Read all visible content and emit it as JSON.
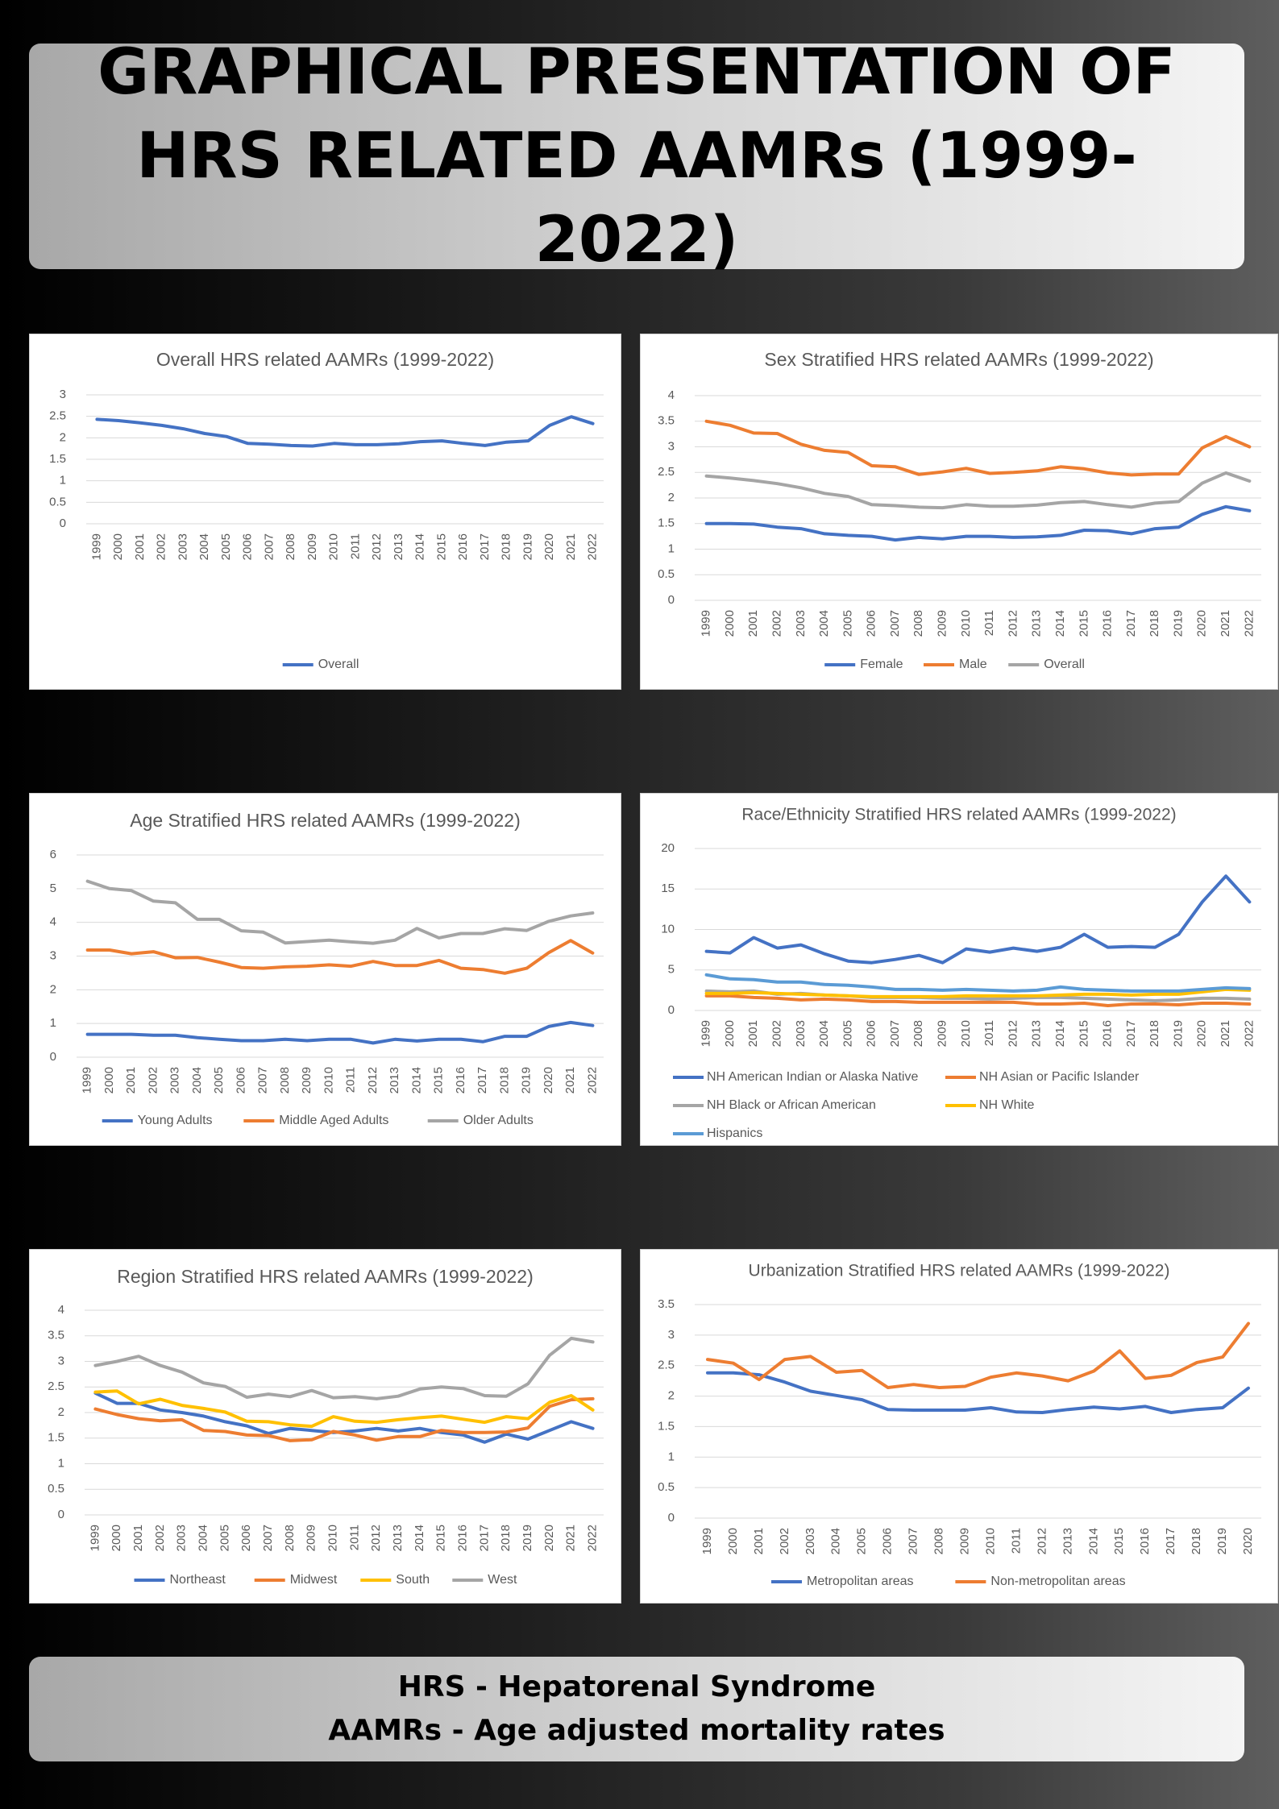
{
  "header": {
    "title": "GRAPHICAL PRESENTATION OF HRS RELATED AAMRs (1999-2022)"
  },
  "footer": {
    "line1": "HRS - Hepatorenal Syndrome",
    "line2": "AAMRs - Age adjusted mortality rates"
  },
  "chart_data": [
    {
      "type": "line",
      "title": "Overall HRS related AAMRs (1999-2022)",
      "xlabel": "",
      "ylabel": "",
      "ylim": [
        0,
        3
      ],
      "yticks": [
        0,
        0.5,
        1,
        1.5,
        2,
        2.5,
        3
      ],
      "grid": true,
      "legend": "bottom",
      "x": [
        "1999",
        "2000",
        "2001",
        "2002",
        "2003",
        "2004",
        "2005",
        "2006",
        "2007",
        "2008",
        "2009",
        "2010",
        "2011",
        "2012",
        "2013",
        "2014",
        "2015",
        "2016",
        "2017",
        "2018",
        "2019",
        "2020",
        "2021",
        "2022"
      ],
      "series": [
        {
          "name": "Overall",
          "color": "#4472C4",
          "values": [
            2.43,
            2.4,
            2.35,
            2.29,
            2.21,
            2.1,
            2.03,
            1.87,
            1.85,
            1.82,
            1.81,
            1.87,
            1.84,
            1.84,
            1.86,
            1.91,
            1.93,
            1.87,
            1.82,
            1.9,
            1.93,
            2.29,
            2.49,
            2.33
          ]
        }
      ]
    },
    {
      "type": "line",
      "title": "Sex Stratified HRS related AAMRs (1999-2022)",
      "xlabel": "",
      "ylabel": "",
      "ylim": [
        0,
        4
      ],
      "yticks": [
        0,
        0.5,
        1,
        1.5,
        2,
        2.5,
        3,
        3.5,
        4
      ],
      "grid": true,
      "legend": "bottom",
      "x": [
        "1999",
        "2000",
        "2001",
        "2002",
        "2003",
        "2004",
        "2005",
        "2006",
        "2007",
        "2008",
        "2009",
        "2010",
        "2011",
        "2012",
        "2013",
        "2014",
        "2015",
        "2016",
        "2017",
        "2018",
        "2019",
        "2020",
        "2021",
        "2022"
      ],
      "series": [
        {
          "name": "Female",
          "color": "#4472C4",
          "values": [
            1.5,
            1.5,
            1.49,
            1.43,
            1.4,
            1.3,
            1.27,
            1.25,
            1.18,
            1.23,
            1.2,
            1.25,
            1.25,
            1.23,
            1.24,
            1.27,
            1.37,
            1.36,
            1.3,
            1.4,
            1.43,
            1.68,
            1.83,
            1.75
          ]
        },
        {
          "name": "Male",
          "color": "#ED7D31",
          "values": [
            3.5,
            3.42,
            3.27,
            3.26,
            3.05,
            2.93,
            2.89,
            2.63,
            2.61,
            2.46,
            2.51,
            2.58,
            2.48,
            2.5,
            2.53,
            2.61,
            2.57,
            2.49,
            2.45,
            2.47,
            2.47,
            2.98,
            3.2,
            3.0
          ]
        },
        {
          "name": "Overall",
          "color": "#A5A5A5",
          "values": [
            2.43,
            2.39,
            2.34,
            2.28,
            2.2,
            2.09,
            2.03,
            1.87,
            1.85,
            1.82,
            1.81,
            1.87,
            1.84,
            1.84,
            1.86,
            1.91,
            1.93,
            1.87,
            1.82,
            1.9,
            1.93,
            2.29,
            2.49,
            2.33
          ]
        }
      ]
    },
    {
      "type": "line",
      "title": "Age Stratified HRS related AAMRs (1999-2022)",
      "xlabel": "",
      "ylabel": "",
      "ylim": [
        0,
        6
      ],
      "yticks": [
        0,
        1,
        2,
        3,
        4,
        5,
        6
      ],
      "grid": true,
      "legend": "bottom",
      "x": [
        "1999",
        "2000",
        "2001",
        "2002",
        "2003",
        "2004",
        "2005",
        "2006",
        "2007",
        "2008",
        "2009",
        "2010",
        "2011",
        "2012",
        "2013",
        "2014",
        "2015",
        "2016",
        "2017",
        "2018",
        "2019",
        "2020",
        "2021",
        "2022"
      ],
      "series": [
        {
          "name": "Young Adults",
          "color": "#4472C4",
          "values": [
            0.68,
            0.68,
            0.68,
            0.65,
            0.65,
            0.58,
            0.53,
            0.49,
            0.49,
            0.53,
            0.49,
            0.53,
            0.53,
            0.42,
            0.53,
            0.48,
            0.53,
            0.53,
            0.46,
            0.62,
            0.62,
            0.91,
            1.03,
            0.94
          ]
        },
        {
          "name": "Middle Aged Adults",
          "color": "#ED7D31",
          "values": [
            3.18,
            3.18,
            3.07,
            3.13,
            2.95,
            2.96,
            2.82,
            2.66,
            2.64,
            2.68,
            2.7,
            2.74,
            2.7,
            2.84,
            2.72,
            2.72,
            2.87,
            2.64,
            2.6,
            2.49,
            2.64,
            3.1,
            3.46,
            3.09
          ]
        },
        {
          "name": "Older Adults",
          "color": "#A5A5A5",
          "values": [
            5.22,
            5.0,
            4.94,
            4.63,
            4.58,
            4.09,
            4.09,
            3.75,
            3.71,
            3.39,
            3.43,
            3.47,
            3.42,
            3.38,
            3.47,
            3.82,
            3.54,
            3.67,
            3.67,
            3.81,
            3.76,
            4.03,
            4.19,
            4.28
          ]
        }
      ]
    },
    {
      "type": "line",
      "title": "Race/Ethnicity Stratified HRS related AAMRs (1999-2022)",
      "xlabel": "",
      "ylabel": "",
      "ylim": [
        0,
        20
      ],
      "yticks": [
        0,
        5,
        10,
        15,
        20
      ],
      "grid": true,
      "legend": "bottom",
      "x": [
        "1999",
        "2000",
        "2001",
        "2002",
        "2003",
        "2004",
        "2005",
        "2006",
        "2007",
        "2008",
        "2009",
        "2010",
        "2011",
        "2012",
        "2013",
        "2014",
        "2015",
        "2016",
        "2017",
        "2018",
        "2019",
        "2020",
        "2021",
        "2022"
      ],
      "series": [
        {
          "name": "NH American Indian or Alaska Native",
          "color": "#4472C4",
          "values": [
            7.3,
            7.1,
            9.0,
            7.7,
            8.1,
            7.0,
            6.1,
            5.9,
            6.3,
            6.8,
            5.9,
            7.6,
            7.2,
            7.7,
            7.3,
            7.8,
            9.4,
            7.8,
            7.9,
            7.8,
            9.4,
            13.4,
            16.6,
            13.4
          ]
        },
        {
          "name": "NH Asian or Pacific Islander",
          "color": "#ED7D31",
          "values": [
            1.8,
            1.8,
            1.6,
            1.5,
            1.3,
            1.4,
            1.3,
            1.1,
            1.1,
            1.0,
            1.0,
            1.0,
            1.0,
            1.0,
            0.8,
            0.8,
            0.9,
            0.6,
            0.8,
            0.8,
            0.7,
            0.9,
            0.9,
            0.8
          ]
        },
        {
          "name": "NH Black or African American",
          "color": "#A5A5A5",
          "values": [
            2.4,
            2.3,
            2.4,
            2.0,
            2.1,
            1.9,
            1.8,
            1.6,
            1.6,
            1.6,
            1.5,
            1.5,
            1.4,
            1.5,
            1.6,
            1.6,
            1.5,
            1.4,
            1.3,
            1.2,
            1.3,
            1.5,
            1.5,
            1.4
          ]
        },
        {
          "name": "NH White",
          "color": "#FFC000",
          "values": [
            2.1,
            2.1,
            2.2,
            2.1,
            2.0,
            1.9,
            1.8,
            1.7,
            1.7,
            1.7,
            1.7,
            1.8,
            1.8,
            1.8,
            1.8,
            1.9,
            2.0,
            2.0,
            1.9,
            2.0,
            2.0,
            2.3,
            2.6,
            2.5
          ]
        },
        {
          "name": "Hispanics",
          "color": "#5B9BD5",
          "values": [
            4.4,
            3.9,
            3.8,
            3.5,
            3.5,
            3.2,
            3.1,
            2.9,
            2.6,
            2.6,
            2.5,
            2.6,
            2.5,
            2.4,
            2.5,
            2.9,
            2.6,
            2.5,
            2.4,
            2.4,
            2.4,
            2.6,
            2.8,
            2.7
          ]
        }
      ]
    },
    {
      "type": "line",
      "title": "Region Stratified HRS related AAMRs (1999-2022)",
      "xlabel": "",
      "ylabel": "",
      "ylim": [
        0,
        4
      ],
      "yticks": [
        0,
        0.5,
        1,
        1.5,
        2,
        2.5,
        3,
        3.5,
        4
      ],
      "grid": true,
      "legend": "bottom",
      "x": [
        "1999",
        "2000",
        "2001",
        "2002",
        "2003",
        "2004",
        "2005",
        "2006",
        "2007",
        "2008",
        "2009",
        "2010",
        "2011",
        "2012",
        "2013",
        "2014",
        "2015",
        "2016",
        "2017",
        "2018",
        "2019",
        "2020",
        "2021",
        "2022"
      ],
      "series": [
        {
          "name": "Northeast",
          "color": "#4472C4",
          "values": [
            2.38,
            2.18,
            2.18,
            2.05,
            2.0,
            1.93,
            1.82,
            1.74,
            1.59,
            1.69,
            1.65,
            1.61,
            1.64,
            1.69,
            1.64,
            1.69,
            1.61,
            1.56,
            1.42,
            1.58,
            1.48,
            1.65,
            1.82,
            1.69
          ]
        },
        {
          "name": "Midwest",
          "color": "#ED7D31",
          "values": [
            2.07,
            1.96,
            1.88,
            1.84,
            1.86,
            1.65,
            1.63,
            1.56,
            1.55,
            1.45,
            1.47,
            1.63,
            1.56,
            1.46,
            1.53,
            1.53,
            1.65,
            1.61,
            1.61,
            1.62,
            1.7,
            2.12,
            2.25,
            2.27
          ]
        },
        {
          "name": "South",
          "color": "#FFC000",
          "values": [
            2.4,
            2.42,
            2.17,
            2.26,
            2.14,
            2.08,
            2.01,
            1.83,
            1.82,
            1.76,
            1.73,
            1.92,
            1.83,
            1.81,
            1.86,
            1.9,
            1.93,
            1.87,
            1.81,
            1.92,
            1.88,
            2.2,
            2.33,
            2.05
          ]
        },
        {
          "name": "West",
          "color": "#A5A5A5",
          "values": [
            2.92,
            3.0,
            3.1,
            2.92,
            2.79,
            2.58,
            2.51,
            2.3,
            2.36,
            2.31,
            2.43,
            2.29,
            2.31,
            2.27,
            2.32,
            2.46,
            2.5,
            2.47,
            2.33,
            2.32,
            2.56,
            3.12,
            3.45,
            3.38
          ]
        }
      ]
    },
    {
      "type": "line",
      "title": "Urbanization Stratified HRS related AAMRs (1999-2022)",
      "xlabel": "",
      "ylabel": "",
      "ylim": [
        0,
        3.5
      ],
      "yticks": [
        0,
        0.5,
        1,
        1.5,
        2,
        2.5,
        3,
        3.5
      ],
      "grid": true,
      "legend": "bottom",
      "x": [
        "1999",
        "2000",
        "2001",
        "2002",
        "2003",
        "2004",
        "2005",
        "2006",
        "2007",
        "2008",
        "2009",
        "2010",
        "2011",
        "2012",
        "2013",
        "2014",
        "2015",
        "2016",
        "2017",
        "2018",
        "2019",
        "2020"
      ],
      "series": [
        {
          "name": "Metropolitan areas",
          "color": "#4472C4",
          "values": [
            2.38,
            2.38,
            2.35,
            2.23,
            2.08,
            2.01,
            1.94,
            1.78,
            1.77,
            1.77,
            1.77,
            1.81,
            1.74,
            1.73,
            1.78,
            1.82,
            1.79,
            1.83,
            1.73,
            1.78,
            1.81,
            2.13
          ]
        },
        {
          "name": "Non-metropolitan areas",
          "color": "#ED7D31",
          "values": [
            2.6,
            2.54,
            2.27,
            2.6,
            2.65,
            2.39,
            2.42,
            2.14,
            2.19,
            2.14,
            2.16,
            2.31,
            2.38,
            2.33,
            2.25,
            2.41,
            2.74,
            2.29,
            2.34,
            2.55,
            2.64,
            3.19
          ]
        }
      ]
    }
  ]
}
